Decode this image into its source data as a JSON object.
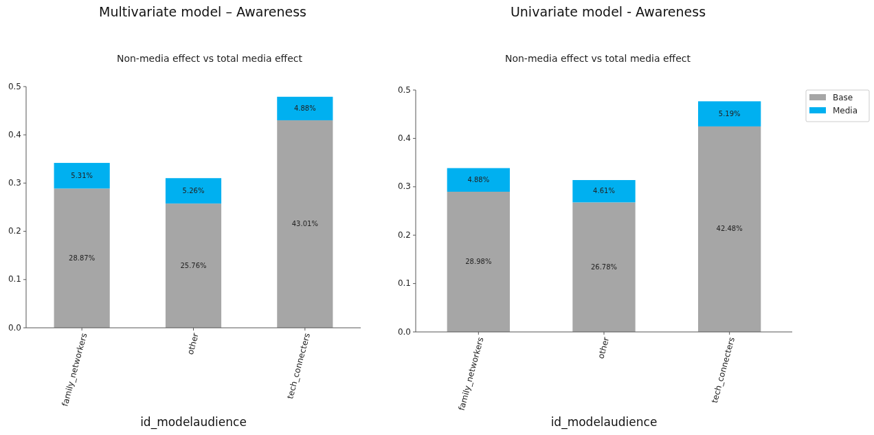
{
  "chart_data": [
    {
      "type": "bar",
      "title": "Multivariate model – Awareness",
      "subtitle": "Non-media effect vs total media effect",
      "xlabel": "id_modelaudience",
      "categories": [
        "family_networkers",
        "other",
        "tech_connecters"
      ],
      "stacked": true,
      "ylim": [
        0,
        0.5
      ],
      "yticks": [
        {
          "value": 0,
          "label": "0.0"
        },
        0.1,
        0.2,
        0.3,
        0.4,
        0.5
      ],
      "legend": false,
      "series": [
        {
          "color": "#a6a6a6",
          "values": [
            0.2887,
            0.2576,
            0.4301
          ],
          "value_labels": [
            "28.87%",
            "25.76%",
            "43.01%"
          ]
        },
        {
          "color": "#00b0f0",
          "values": [
            0.0531,
            0.0526,
            0.0488
          ],
          "value_labels": [
            "5.31%",
            "5.26%",
            "4.88%"
          ]
        }
      ]
    },
    {
      "type": "bar",
      "title": "Univariate model - Awareness",
      "subtitle": "Non-media effect vs total media effect",
      "xlabel": "id_modelaudience",
      "categories": [
        "family_networkers",
        "other",
        "tech_connecters"
      ],
      "stacked": true,
      "ylim": [
        0,
        0.5
      ],
      "yticks": [
        {
          "value": 0,
          "label": "0.0"
        },
        0.1,
        0.2,
        0.3,
        0.4,
        0.5
      ],
      "legend": "top right",
      "series": [
        {
          "name": "Base",
          "color": "#a6a6a6",
          "values": [
            0.2898,
            0.2678,
            0.4248
          ],
          "value_labels": [
            "28.98%",
            "26.78%",
            "42.48%"
          ]
        },
        {
          "name": "Media",
          "color": "#00b0f0",
          "values": [
            0.0488,
            0.0461,
            0.0519
          ],
          "value_labels": [
            "4.88%",
            "4.61%",
            "5.19%"
          ]
        }
      ]
    }
  ]
}
